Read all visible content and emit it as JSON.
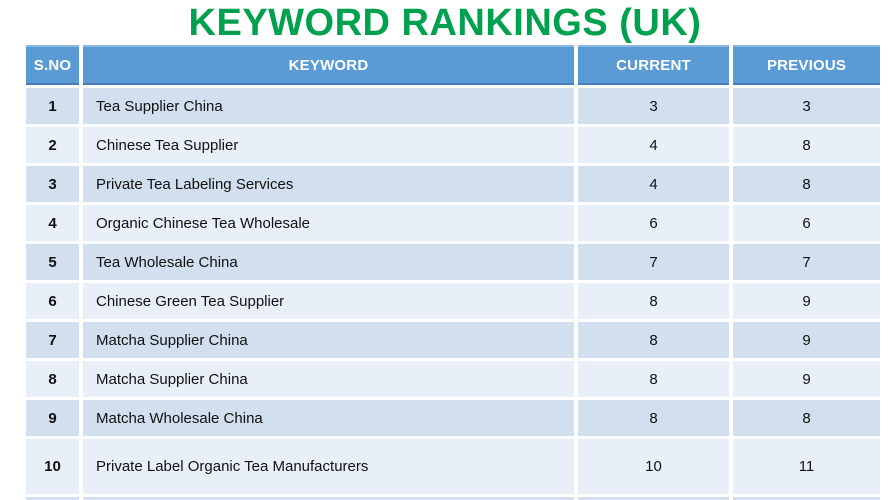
{
  "title": "KEYWORD RANKINGS (UK)",
  "table": {
    "headers": [
      "S.NO",
      "KEYWORD",
      "CURRENT",
      "PREVIOUS"
    ],
    "rows": [
      {
        "sno": "1",
        "keyword": "Tea Supplier China",
        "current": "3",
        "previous": "3"
      },
      {
        "sno": "2",
        "keyword": "Chinese Tea Supplier",
        "current": "4",
        "previous": "8"
      },
      {
        "sno": "3",
        "keyword": "Private Tea Labeling Services",
        "current": "4",
        "previous": "8"
      },
      {
        "sno": "4",
        "keyword": "Organic Chinese Tea Wholesale",
        "current": "6",
        "previous": "6"
      },
      {
        "sno": "5",
        "keyword": "Tea Wholesale China",
        "current": "7",
        "previous": "7"
      },
      {
        "sno": "6",
        "keyword": "Chinese Green Tea Supplier",
        "current": "8",
        "previous": "9"
      },
      {
        "sno": "7",
        "keyword": "Matcha Supplier China",
        "current": "8",
        "previous": "9"
      },
      {
        "sno": "8",
        "keyword": "Matcha Supplier China",
        "current": "8",
        "previous": "9"
      },
      {
        "sno": "9",
        "keyword": "Matcha Wholesale China",
        "current": "8",
        "previous": "8"
      },
      {
        "sno": "10",
        "keyword": "Private Label Organic Tea Manufacturers",
        "current": "10",
        "previous": "11"
      }
    ]
  },
  "colors": {
    "title_green": "#00A14E",
    "header_bg": "#5B9BD5",
    "header_border_top": "#8AB6E2",
    "header_border_bottom": "#4A7CB8",
    "row_dark": "#D2DFEF",
    "row_light": "#E9EFF8"
  },
  "chart_data": {
    "type": "table",
    "title": "KEYWORD RANKINGS (UK)",
    "columns": [
      "S.NO",
      "KEYWORD",
      "CURRENT",
      "PREVIOUS"
    ],
    "rows": [
      [
        1,
        "Tea Supplier China",
        3,
        3
      ],
      [
        2,
        "Chinese Tea Supplier",
        4,
        8
      ],
      [
        3,
        "Private Tea Labeling Services",
        4,
        8
      ],
      [
        4,
        "Organic Chinese Tea Wholesale",
        6,
        6
      ],
      [
        5,
        "Tea Wholesale China",
        7,
        7
      ],
      [
        6,
        "Chinese Green Tea Supplier",
        8,
        9
      ],
      [
        7,
        "Matcha Supplier China",
        8,
        9
      ],
      [
        8,
        "Matcha Supplier China",
        8,
        9
      ],
      [
        9,
        "Matcha Wholesale China",
        8,
        8
      ],
      [
        10,
        "Private Label Organic Tea Manufacturers",
        10,
        11
      ]
    ]
  }
}
